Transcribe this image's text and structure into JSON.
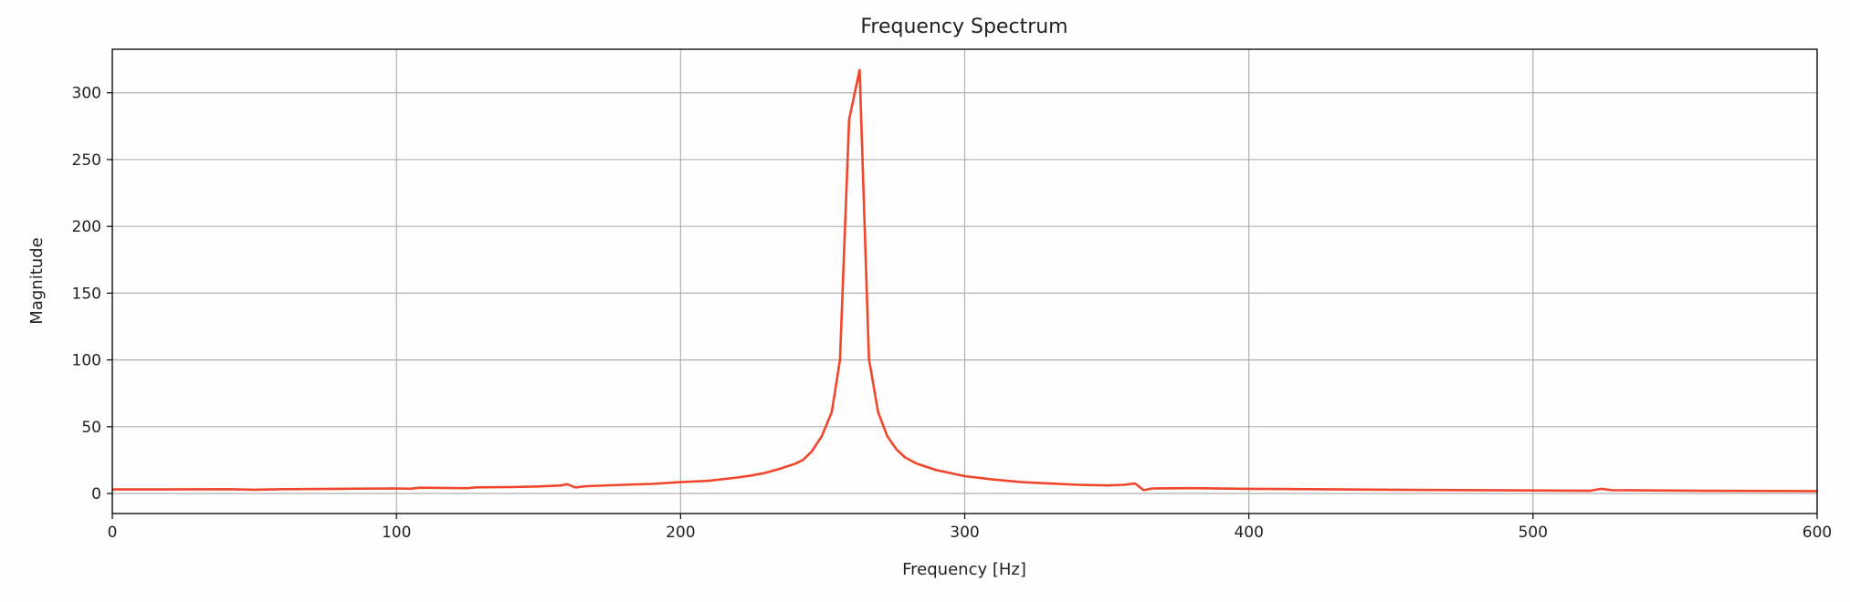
{
  "chart_data": {
    "type": "line",
    "title": "Frequency Spectrum",
    "xlabel": "Frequency [Hz]",
    "ylabel": "Magnitude",
    "xlim": [
      0,
      600
    ],
    "ylim": [
      -15,
      332.6
    ],
    "xticks": [
      0,
      100,
      200,
      300,
      400,
      500,
      600
    ],
    "yticks": [
      0,
      50,
      100,
      150,
      200,
      250,
      300
    ],
    "grid": true,
    "line_color": "#f0462c",
    "series": [
      {
        "x": [
          0,
          20,
          40,
          50,
          60,
          80,
          100,
          105,
          108,
          125,
          128,
          140,
          150,
          158,
          160,
          163,
          167,
          180,
          190,
          200,
          210,
          220,
          225,
          230,
          235,
          240,
          243,
          246,
          249.7,
          253.2,
          256.1,
          259.3,
          263,
          266.3,
          269.5,
          272.7,
          276,
          279,
          283,
          290,
          300,
          310,
          320,
          330,
          340,
          350,
          356,
          360,
          363,
          366,
          380,
          400,
          450,
          500,
          520,
          524,
          528,
          560,
          600
        ],
        "y": [
          3,
          3,
          3.2,
          2.8,
          3.2,
          3.5,
          3.8,
          3.6,
          4.3,
          4,
          4.6,
          4.8,
          5.3,
          6,
          7,
          4.5,
          5.5,
          6.5,
          7.2,
          8.5,
          9.5,
          12,
          13.5,
          15.5,
          18.5,
          22,
          25,
          31,
          43,
          61,
          100,
          280,
          317,
          101,
          61,
          43,
          33,
          27,
          22.5,
          17.5,
          13,
          10.5,
          8.5,
          7.5,
          6.5,
          6,
          6.5,
          7.5,
          2.5,
          3.8,
          4,
          3.5,
          2.8,
          2.3,
          2,
          3.5,
          2.5,
          2,
          1.8
        ]
      }
    ]
  }
}
